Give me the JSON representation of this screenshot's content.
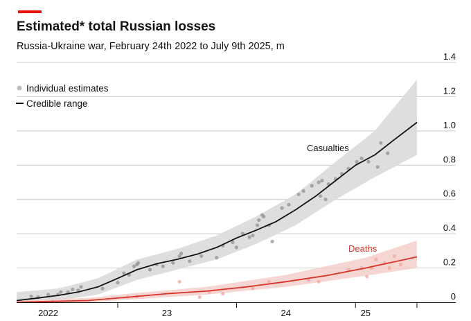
{
  "title": "Estimated* total Russian losses",
  "subtitle": "Russia-Ukraine war, February 24th 2022 to July 9th 2025, m",
  "accent_color": "#e3120b",
  "chart_data": {
    "type": "line",
    "x_unit": "date",
    "ylim": [
      0,
      1.4
    ],
    "y_ticks": [
      "0",
      "0.2",
      "0.4",
      "0.6",
      "0.8",
      "1.0",
      "1.2",
      "1.4"
    ],
    "y_tick_values": [
      0,
      0.2,
      0.4,
      0.6,
      0.8,
      1.0,
      1.2,
      1.4
    ],
    "x_ticks": [
      "2022",
      "23",
      "24",
      "25"
    ],
    "x_tick_dates": [
      "2022-06-01",
      "2023-06-01",
      "2024-06-01",
      "2025-02-01"
    ],
    "xlim": [
      "2022-02-24",
      "2025-07-09"
    ],
    "grid": "horizontal",
    "legend": {
      "position": "top-left",
      "items": [
        {
          "label": "Individual estimates",
          "symbol": "dot",
          "color": "#b8b8b8"
        },
        {
          "label": "Credible range",
          "symbol": "line",
          "color": "#121212"
        }
      ]
    },
    "series": [
      {
        "name": "Casualties",
        "color": "#121212",
        "band_color": "#dcdcdc",
        "dot_color": "#909090",
        "line": [
          [
            "2022-02-24",
            0.01
          ],
          [
            "2022-05-01",
            0.025
          ],
          [
            "2022-07-01",
            0.04
          ],
          [
            "2022-09-01",
            0.06
          ],
          [
            "2022-11-01",
            0.09
          ],
          [
            "2023-01-01",
            0.14
          ],
          [
            "2023-03-01",
            0.19
          ],
          [
            "2023-05-01",
            0.225
          ],
          [
            "2023-07-01",
            0.25
          ],
          [
            "2023-09-01",
            0.28
          ],
          [
            "2023-11-01",
            0.32
          ],
          [
            "2024-01-01",
            0.375
          ],
          [
            "2024-03-01",
            0.42
          ],
          [
            "2024-05-01",
            0.47
          ],
          [
            "2024-07-01",
            0.54
          ],
          [
            "2024-09-01",
            0.62
          ],
          [
            "2024-11-01",
            0.71
          ],
          [
            "2025-01-01",
            0.8
          ],
          [
            "2025-03-01",
            0.86
          ],
          [
            "2025-05-01",
            0.95
          ],
          [
            "2025-07-09",
            1.05
          ]
        ],
        "lower": [
          [
            "2022-02-24",
            0.0
          ],
          [
            "2022-07-01",
            0.01
          ],
          [
            "2022-11-01",
            0.045
          ],
          [
            "2023-03-01",
            0.13
          ],
          [
            "2023-07-01",
            0.19
          ],
          [
            "2023-11-01",
            0.25
          ],
          [
            "2024-03-01",
            0.34
          ],
          [
            "2024-07-01",
            0.45
          ],
          [
            "2024-11-01",
            0.6
          ],
          [
            "2025-03-01",
            0.73
          ],
          [
            "2025-07-09",
            0.86
          ]
        ],
        "upper": [
          [
            "2022-02-24",
            0.06
          ],
          [
            "2022-07-01",
            0.08
          ],
          [
            "2022-11-01",
            0.14
          ],
          [
            "2023-03-01",
            0.25
          ],
          [
            "2023-07-01",
            0.31
          ],
          [
            "2023-11-01",
            0.39
          ],
          [
            "2024-03-01",
            0.5
          ],
          [
            "2024-07-01",
            0.63
          ],
          [
            "2024-11-01",
            0.82
          ],
          [
            "2025-03-01",
            1.0
          ],
          [
            "2025-07-09",
            1.3
          ]
        ],
        "estimates": [
          [
            "2022-04-10",
            0.035
          ],
          [
            "2022-05-01",
            0.03
          ],
          [
            "2022-06-01",
            0.045
          ],
          [
            "2022-07-01",
            0.045
          ],
          [
            "2022-07-10",
            0.06
          ],
          [
            "2022-08-01",
            0.06
          ],
          [
            "2022-08-15",
            0.075
          ],
          [
            "2022-09-01",
            0.07
          ],
          [
            "2022-09-10",
            0.09
          ],
          [
            "2022-11-15",
            0.08
          ],
          [
            "2023-01-01",
            0.115
          ],
          [
            "2023-01-20",
            0.17
          ],
          [
            "2023-02-05",
            0.16
          ],
          [
            "2023-02-20",
            0.21
          ],
          [
            "2023-03-01",
            0.22
          ],
          [
            "2023-03-05",
            0.23
          ],
          [
            "2023-04-10",
            0.19
          ],
          [
            "2023-05-01",
            0.22
          ],
          [
            "2023-05-20",
            0.21
          ],
          [
            "2023-06-20",
            0.23
          ],
          [
            "2023-07-10",
            0.27
          ],
          [
            "2023-07-15",
            0.285
          ],
          [
            "2023-08-10",
            0.24
          ],
          [
            "2023-09-15",
            0.27
          ],
          [
            "2023-11-01",
            0.26
          ],
          [
            "2023-11-20",
            0.33
          ],
          [
            "2023-12-20",
            0.35
          ],
          [
            "2024-01-01",
            0.32
          ],
          [
            "2024-01-20",
            0.4
          ],
          [
            "2024-02-10",
            0.38
          ],
          [
            "2024-02-20",
            0.39
          ],
          [
            "2024-03-05",
            0.45
          ],
          [
            "2024-03-10",
            0.48
          ],
          [
            "2024-03-25",
            0.5
          ],
          [
            "2024-03-20",
            0.51
          ],
          [
            "2024-04-10",
            0.45
          ],
          [
            "2024-04-20",
            0.355
          ],
          [
            "2024-05-20",
            0.55
          ],
          [
            "2024-06-10",
            0.57
          ],
          [
            "2024-07-10",
            0.63
          ],
          [
            "2024-07-25",
            0.65
          ],
          [
            "2024-08-20",
            0.68
          ],
          [
            "2024-09-10",
            0.7
          ],
          [
            "2024-09-20",
            0.71
          ],
          [
            "2024-09-15",
            0.62
          ],
          [
            "2024-10-01",
            0.6
          ],
          [
            "2024-10-10",
            0.69
          ],
          [
            "2024-11-01",
            0.72
          ],
          [
            "2024-11-20",
            0.75
          ],
          [
            "2024-12-10",
            0.78
          ],
          [
            "2025-01-05",
            0.82
          ],
          [
            "2025-01-20",
            0.84
          ],
          [
            "2025-02-10",
            0.82
          ],
          [
            "2025-03-10",
            0.79
          ],
          [
            "2025-03-20",
            0.93
          ],
          [
            "2025-04-10",
            0.87
          ]
        ],
        "label": "Casualties"
      },
      {
        "name": "Deaths",
        "color": "#d6342a",
        "band_color": "#f5cfca",
        "dot_color": "#f0a7a0",
        "line": [
          [
            "2022-02-24",
            0.0
          ],
          [
            "2022-06-01",
            0.005
          ],
          [
            "2022-10-01",
            0.01
          ],
          [
            "2023-02-01",
            0.03
          ],
          [
            "2023-06-01",
            0.05
          ],
          [
            "2023-10-01",
            0.065
          ],
          [
            "2024-02-01",
            0.09
          ],
          [
            "2024-06-01",
            0.12
          ],
          [
            "2024-10-01",
            0.155
          ],
          [
            "2025-02-01",
            0.2
          ],
          [
            "2025-07-09",
            0.265
          ]
        ],
        "lower": [
          [
            "2022-02-24",
            0.0
          ],
          [
            "2022-10-01",
            0.0
          ],
          [
            "2023-02-01",
            0.015
          ],
          [
            "2023-10-01",
            0.045
          ],
          [
            "2024-06-01",
            0.09
          ],
          [
            "2025-02-01",
            0.155
          ],
          [
            "2025-07-09",
            0.2
          ]
        ],
        "upper": [
          [
            "2022-02-24",
            0.01
          ],
          [
            "2022-10-01",
            0.025
          ],
          [
            "2023-02-01",
            0.05
          ],
          [
            "2023-10-01",
            0.09
          ],
          [
            "2024-06-01",
            0.16
          ],
          [
            "2025-02-01",
            0.26
          ],
          [
            "2025-07-09",
            0.36
          ]
        ],
        "estimates": [
          [
            "2022-06-15",
            0.005
          ],
          [
            "2023-02-01",
            0.03
          ],
          [
            "2023-03-01",
            0.035
          ],
          [
            "2023-07-10",
            0.12
          ],
          [
            "2023-09-10",
            0.03
          ],
          [
            "2023-10-10",
            0.06
          ],
          [
            "2023-11-20",
            0.05
          ],
          [
            "2024-02-20",
            0.08
          ],
          [
            "2024-04-10",
            0.12
          ],
          [
            "2024-08-10",
            0.13
          ],
          [
            "2024-09-10",
            0.12
          ],
          [
            "2024-12-10",
            0.19
          ],
          [
            "2025-01-20",
            0.2
          ],
          [
            "2025-02-05",
            0.15
          ],
          [
            "2025-02-20",
            0.2
          ],
          [
            "2025-03-05",
            0.25
          ],
          [
            "2025-04-01",
            0.23
          ],
          [
            "2025-04-15",
            0.2
          ],
          [
            "2025-05-01",
            0.27
          ],
          [
            "2025-05-20",
            0.22
          ]
        ],
        "label": "Deaths"
      }
    ]
  }
}
